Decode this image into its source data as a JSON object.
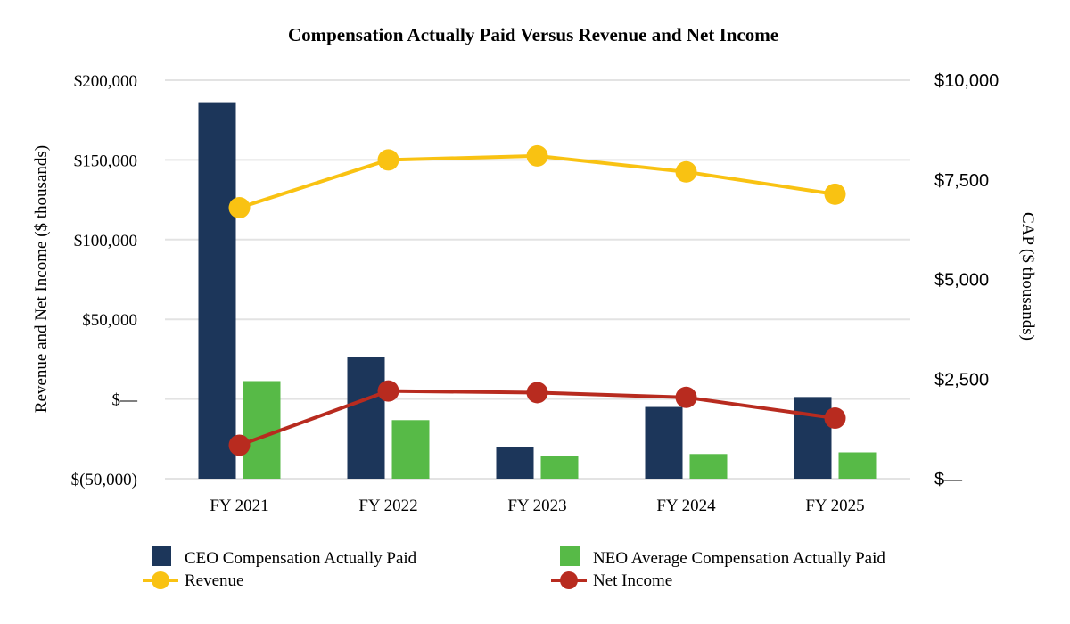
{
  "chart_data": {
    "type": "bar",
    "title": "Compensation Actually Paid Versus Revenue and Net Income",
    "categories": [
      "FY 2021",
      "FY 2022",
      "FY 2023",
      "FY 2024",
      "FY 2025"
    ],
    "y_left": {
      "label": "Revenue and Net Income ($ thousands)",
      "ticks": [
        "$(50,000)",
        "$—",
        "$50,000",
        "$100,000",
        "$150,000",
        "$200,000"
      ],
      "tick_values": [
        -50000,
        0,
        50000,
        100000,
        150000,
        200000
      ],
      "ylim": [
        -50000,
        200000
      ]
    },
    "y_right": {
      "label": "CAP ($ thousands)",
      "ticks": [
        "$—",
        "$2,500",
        "$5,000",
        "$7,500",
        "$10,000"
      ],
      "tick_values": [
        0,
        2500,
        5000,
        7500,
        10000
      ],
      "ylim": [
        0,
        10000
      ]
    },
    "grid": true,
    "legend_position": "bottom",
    "bar_series": [
      {
        "name": "CEO Compensation Actually Paid",
        "axis": "right",
        "color": "#1c365a",
        "values": [
          9450,
          3050,
          800,
          1800,
          2050
        ]
      },
      {
        "name": "NEO Average Compensation Actually Paid",
        "axis": "right",
        "color": "#57ba47",
        "values": [
          2450,
          1470,
          580,
          620,
          660
        ]
      }
    ],
    "line_series": [
      {
        "name": "Revenue",
        "axis": "left",
        "color": "#f9c212",
        "values": [
          120000,
          150000,
          152500,
          142500,
          128500
        ]
      },
      {
        "name": "Net Income",
        "axis": "left",
        "color": "#b82b1f",
        "values": [
          -29000,
          5000,
          4000,
          1000,
          -12000
        ]
      }
    ]
  }
}
